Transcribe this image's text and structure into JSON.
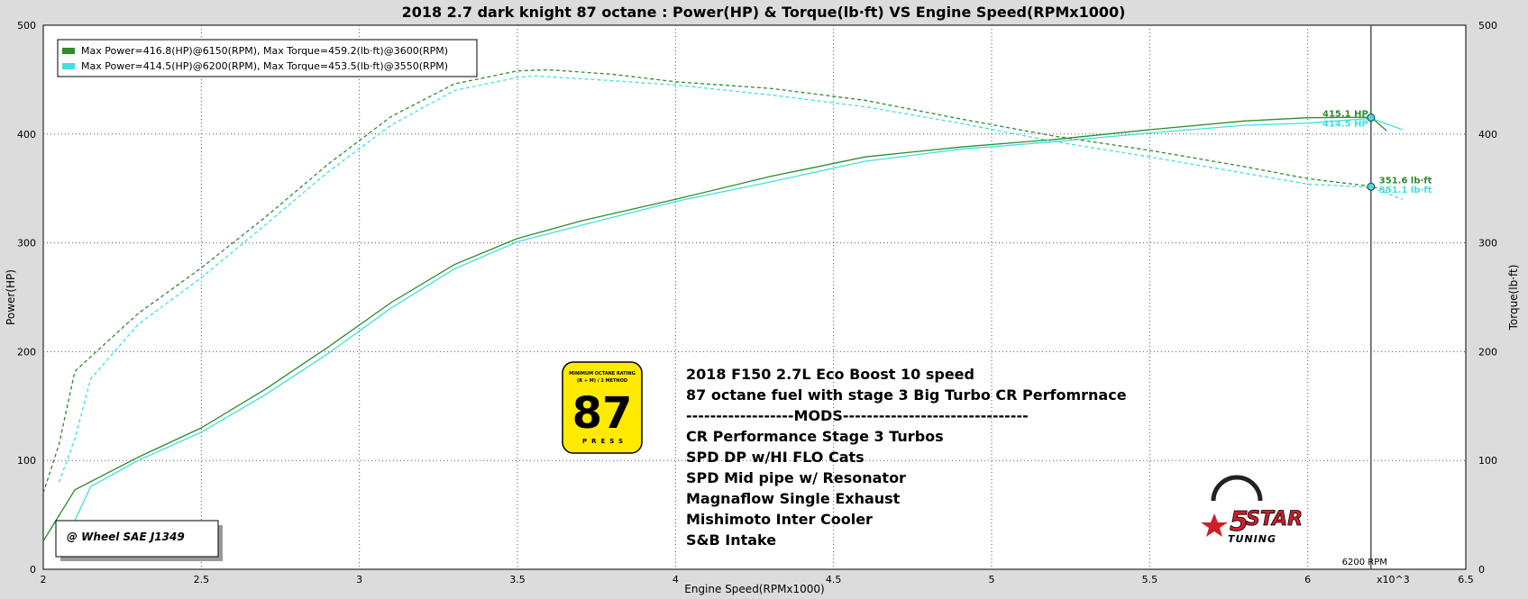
{
  "chart_data": {
    "type": "line",
    "title": "2018 2.7 dark knight 87 octane : Power(HP) & Torque(lb·ft) VS Engine Speed(RPMx1000)",
    "xlabel": "Engine Speed(RPMx1000)",
    "ylabel_left": "Power(HP)",
    "ylabel_right": "Torque(lb·ft)",
    "x_multiplier_label": "x10^3",
    "xlim": [
      2,
      6.5
    ],
    "ylim": [
      0,
      500
    ],
    "x_ticks": [
      "2",
      "2.5",
      "3",
      "3.5",
      "4",
      "4.5",
      "5",
      "5.5",
      "6",
      "6.5"
    ],
    "y_ticks_left": [
      "0",
      "100",
      "200",
      "300",
      "400",
      "500"
    ],
    "y_ticks_right": [
      "0",
      "100",
      "200",
      "300",
      "400",
      "500"
    ],
    "grid": true,
    "legend_position": "top-left",
    "legend": [
      "Max Power=416.8(HP)@6150(RPM), Max Torque=459.2(lb·ft)@3600(RPM)",
      "Max Power=414.5(HP)@6200(RPM), Max Torque=453.5(lb·ft)@3550(RPM)"
    ],
    "series": [
      {
        "color": "#2e8b2e",
        "axis": "power",
        "dashed": false,
        "x": [
          2.0,
          2.1,
          2.3,
          2.5,
          2.7,
          2.9,
          3.1,
          3.3,
          3.5,
          3.7,
          4.0,
          4.3,
          4.6,
          4.9,
          5.2,
          5.5,
          5.8,
          6.0,
          6.2,
          6.25
        ],
        "y": [
          26,
          73,
          103,
          130,
          165,
          204,
          245,
          280,
          304,
          320,
          340,
          361,
          379,
          388,
          395,
          404,
          412,
          415,
          415.5,
          403
        ]
      },
      {
        "color": "#2e8b2e",
        "axis": "torque",
        "dashed": true,
        "x": [
          2.0,
          2.05,
          2.1,
          2.3,
          2.5,
          2.7,
          2.9,
          3.1,
          3.3,
          3.5,
          3.6,
          3.8,
          4.0,
          4.3,
          4.6,
          4.9,
          5.2,
          5.5,
          5.8,
          6.0,
          6.2,
          6.25
        ],
        "y": [
          70,
          115,
          182,
          235,
          277,
          323,
          372,
          416,
          446,
          458,
          459,
          455,
          448,
          442,
          431,
          414,
          398,
          385,
          370,
          359,
          352,
          348
        ]
      },
      {
        "color": "#40e0e0",
        "axis": "power",
        "dashed": false,
        "x": [
          2.1,
          2.15,
          2.3,
          2.5,
          2.7,
          2.9,
          3.1,
          3.3,
          3.5,
          3.7,
          4.0,
          4.3,
          4.6,
          4.9,
          5.2,
          5.5,
          5.8,
          6.0,
          6.2,
          6.3
        ],
        "y": [
          45,
          76,
          100,
          126,
          160,
          198,
          240,
          276,
          301,
          316,
          338,
          356,
          375,
          386,
          393,
          401,
          408,
          410,
          414.5,
          404
        ]
      },
      {
        "color": "#40e0e0",
        "axis": "torque",
        "dashed": true,
        "x": [
          2.05,
          2.1,
          2.15,
          2.3,
          2.5,
          2.7,
          2.9,
          3.1,
          3.3,
          3.5,
          3.55,
          3.8,
          4.0,
          4.3,
          4.6,
          4.9,
          5.2,
          5.5,
          5.8,
          6.0,
          6.2,
          6.3
        ],
        "y": [
          80,
          120,
          175,
          225,
          268,
          316,
          365,
          408,
          440,
          452,
          453.5,
          449,
          445,
          436,
          425,
          410,
          393,
          379,
          364,
          354,
          351,
          340
        ]
      }
    ],
    "cursor": {
      "x": 6.2,
      "rpm_label": "6200 RPM",
      "hp_values": [
        "415.1 HP",
        "414.5 HP"
      ],
      "torque_values": [
        "351.6 lb·ft",
        "351.1 lb·ft"
      ],
      "hp_y": [
        415.1,
        414.5
      ],
      "torque_y": [
        351.6,
        351.1
      ]
    }
  },
  "annotation": {
    "wheel_label": "@ Wheel SAE J1349",
    "notes": [
      "2018 F150 2.7L Eco Boost 10 speed",
      "87 octane fuel with stage 3 Big Turbo CR Perfomrnace",
      "------------------MODS-------------------------------",
      "CR Performance Stage 3 Turbos",
      "SPD DP w/HI FLO Cats",
      "SPD Mid pipe w/ Resonator",
      "Magnaflow Single Exhaust",
      "Mishimoto Inter Cooler",
      "S&B Intake"
    ],
    "octane_badge": {
      "line1": "MINIMUM OCTANE RATING",
      "line2": "(R + M) / 2 METHOD",
      "number": "87",
      "word": "PRESS",
      "color": "#ffea00"
    },
    "logo": {
      "number": "5",
      "word": "STAR",
      "sub": "TUNING",
      "color": "#cc1f2a"
    }
  }
}
